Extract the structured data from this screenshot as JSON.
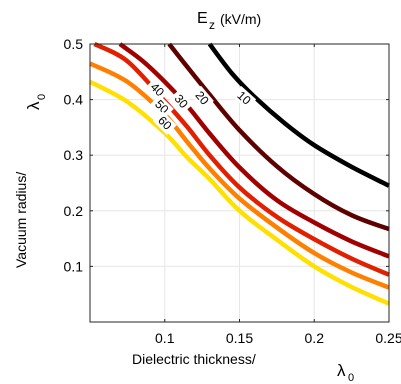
{
  "chart_data": {
    "type": "line",
    "title": "E",
    "title_subscript": "z",
    "title_unit": "(kV/m)",
    "xlabel": "Dielectric thickness/",
    "xlabel_symbol": "λ",
    "xlabel_symbol_sub": "0",
    "ylabel": "Vacuum radius/",
    "ylabel_symbol": "λ",
    "ylabel_symbol_sub": "0",
    "xlim": [
      0.05,
      0.25
    ],
    "ylim": [
      0.0,
      0.5
    ],
    "xticks": [
      0.1,
      0.15,
      0.2,
      0.25
    ],
    "xtick_labels": [
      "0.1",
      "0.15",
      "0.2",
      "0.25"
    ],
    "yticks": [
      0.1,
      0.2,
      0.3,
      0.4,
      0.5
    ],
    "ytick_labels": [
      "0.1",
      "0.2",
      "0.3",
      "0.4",
      "0.5"
    ],
    "grid": true,
    "series": [
      {
        "name": "10",
        "color": "#000000",
        "x": [
          0.13,
          0.145,
          0.16,
          0.18,
          0.2,
          0.225,
          0.25
        ],
        "y": [
          0.5,
          0.447,
          0.405,
          0.358,
          0.318,
          0.279,
          0.245
        ]
      },
      {
        "name": "20",
        "color": "#5c0000",
        "x": [
          0.103,
          0.115,
          0.13,
          0.15,
          0.175,
          0.2,
          0.225,
          0.25
        ],
        "y": [
          0.5,
          0.459,
          0.409,
          0.345,
          0.28,
          0.23,
          0.192,
          0.167
        ]
      },
      {
        "name": "30",
        "color": "#a00000",
        "x": [
          0.07,
          0.085,
          0.1,
          0.115,
          0.13,
          0.15,
          0.175,
          0.2,
          0.225,
          0.25
        ],
        "y": [
          0.5,
          0.47,
          0.432,
          0.389,
          0.339,
          0.278,
          0.219,
          0.179,
          0.145,
          0.118
        ]
      },
      {
        "name": "40",
        "color": "#e02000",
        "x": [
          0.053,
          0.075,
          0.1,
          0.115,
          0.13,
          0.15,
          0.175,
          0.2,
          0.225,
          0.25
        ],
        "y": [
          0.5,
          0.469,
          0.397,
          0.351,
          0.3,
          0.242,
          0.189,
          0.149,
          0.114,
          0.085
        ]
      },
      {
        "name": "50",
        "color": "#ff8000",
        "x": [
          0.05,
          0.075,
          0.1,
          0.115,
          0.13,
          0.15,
          0.175,
          0.2,
          0.225,
          0.25
        ],
        "y": [
          0.465,
          0.432,
          0.373,
          0.324,
          0.276,
          0.222,
          0.17,
          0.124,
          0.089,
          0.062
        ]
      },
      {
        "name": "60",
        "color": "#ffe000",
        "x": [
          0.05,
          0.075,
          0.1,
          0.115,
          0.13,
          0.15,
          0.175,
          0.2,
          0.225,
          0.25
        ],
        "y": [
          0.432,
          0.396,
          0.34,
          0.296,
          0.257,
          0.2,
          0.148,
          0.1,
          0.063,
          0.033
        ]
      }
    ],
    "contour_labels": [
      {
        "text": "10",
        "x": 0.153,
        "y": 0.403,
        "angle": 42
      },
      {
        "text": "20",
        "x": 0.125,
        "y": 0.403,
        "angle": 50
      },
      {
        "text": "30",
        "x": 0.111,
        "y": 0.397,
        "angle": 50
      },
      {
        "text": "40",
        "x": 0.095,
        "y": 0.418,
        "angle": 45
      },
      {
        "text": "50",
        "x": 0.098,
        "y": 0.387,
        "angle": 45
      },
      {
        "text": "60",
        "x": 0.1,
        "y": 0.358,
        "angle": 45
      }
    ]
  }
}
